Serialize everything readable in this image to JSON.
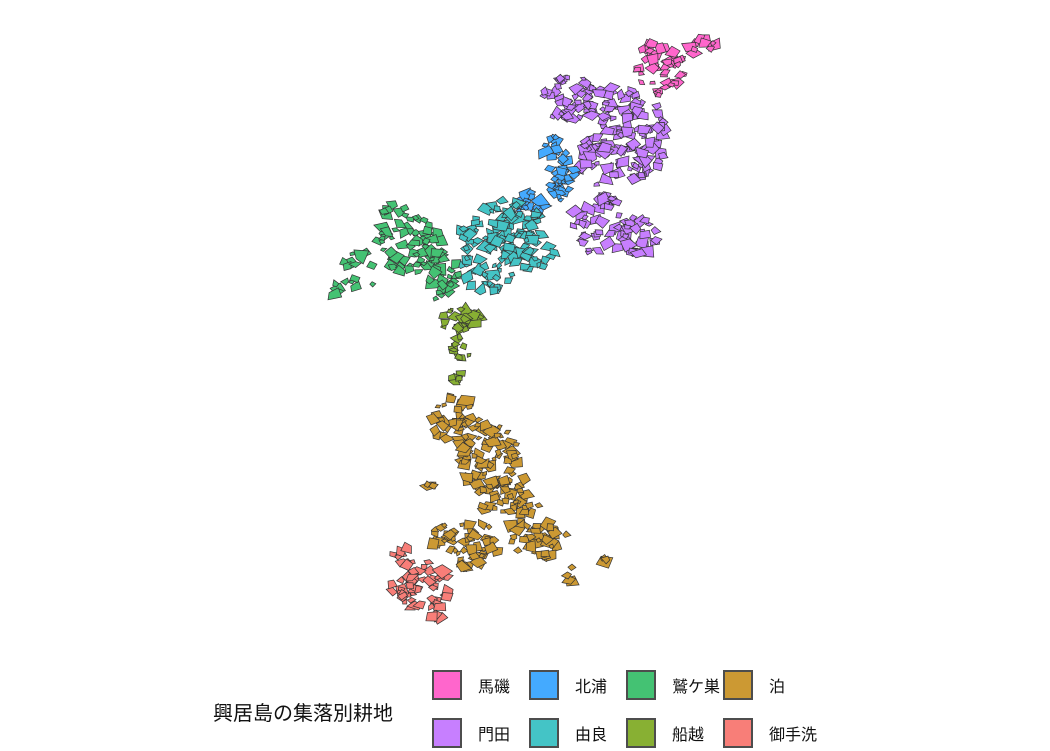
{
  "legend": {
    "title": "興居島の集落別耕地",
    "items": [
      {
        "label": "馬磯",
        "color": "#FF66CC"
      },
      {
        "label": "北浦",
        "color": "#44AAFF"
      },
      {
        "label": "鷲ケ巣",
        "color": "#44C273"
      },
      {
        "label": "泊",
        "color": "#CC9933"
      },
      {
        "label": "門田",
        "color": "#C77FFF"
      },
      {
        "label": "由良",
        "color": "#44C4C6"
      },
      {
        "label": "船越",
        "color": "#88B033"
      },
      {
        "label": "御手洗",
        "color": "#F87E78"
      }
    ]
  },
  "map": {
    "outline_color": "#333333",
    "background": "#FFFFFF"
  }
}
